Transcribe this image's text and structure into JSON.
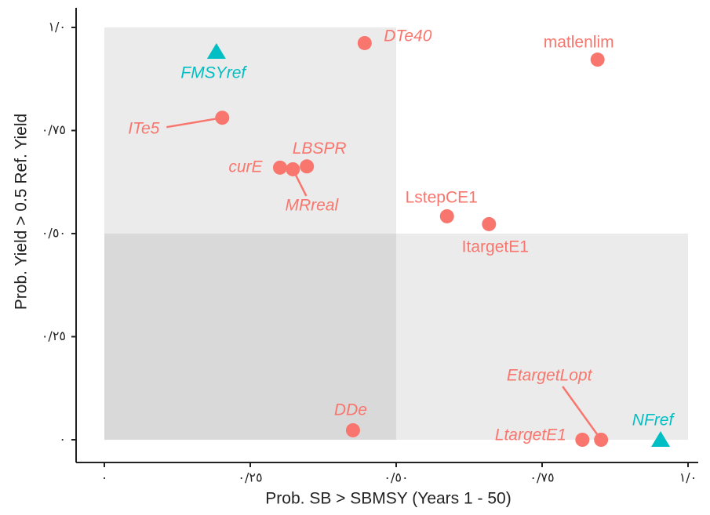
{
  "chart_data": {
    "type": "scatter",
    "xlabel": "Prob. SB > SBMSY (Years 1 - 50)",
    "ylabel": "Prob. Yield > 0.5 Ref. Yield",
    "xlim": [
      0,
      1
    ],
    "ylim": [
      0,
      1
    ],
    "xticks": [
      {
        "value": 0,
        "label": "٠"
      },
      {
        "value": 0.25,
        "label": "٠/٢٥"
      },
      {
        "value": 0.5,
        "label": "٠/٥٠"
      },
      {
        "value": 0.75,
        "label": "٠/٧٥"
      },
      {
        "value": 1,
        "label": "١/٠"
      }
    ],
    "yticks": [
      {
        "value": 0,
        "label": "٠"
      },
      {
        "value": 0.25,
        "label": "٠/٢٥"
      },
      {
        "value": 0.5,
        "label": "٠/٥٠"
      },
      {
        "value": 0.75,
        "label": "٠/٧٥"
      },
      {
        "value": 1,
        "label": "١/٠"
      }
    ],
    "series": [
      {
        "color": "#f8766d",
        "marker": "circle",
        "labels": [
          "DTe40",
          "matlenlim",
          "ITe5",
          "curE",
          "MRreal",
          "LBSPR",
          "LstepCE1",
          "ItargetE1",
          "DDe",
          "LtargetE1",
          "EtargetLopt"
        ],
        "x": [
          0.446,
          0.845,
          0.202,
          0.301,
          0.323,
          0.347,
          0.587,
          0.659,
          0.426,
          0.819,
          0.851
        ],
        "values": [
          0.962,
          0.922,
          0.781,
          0.66,
          0.656,
          0.663,
          0.542,
          0.523,
          0.023,
          0.0,
          0.0
        ]
      },
      {
        "color": "#00bfc4",
        "marker": "triangle",
        "labels": [
          "FMSYref",
          "NFref"
        ],
        "x": [
          0.192,
          0.953
        ],
        "values": [
          0.941,
          0.0
        ]
      }
    ]
  }
}
